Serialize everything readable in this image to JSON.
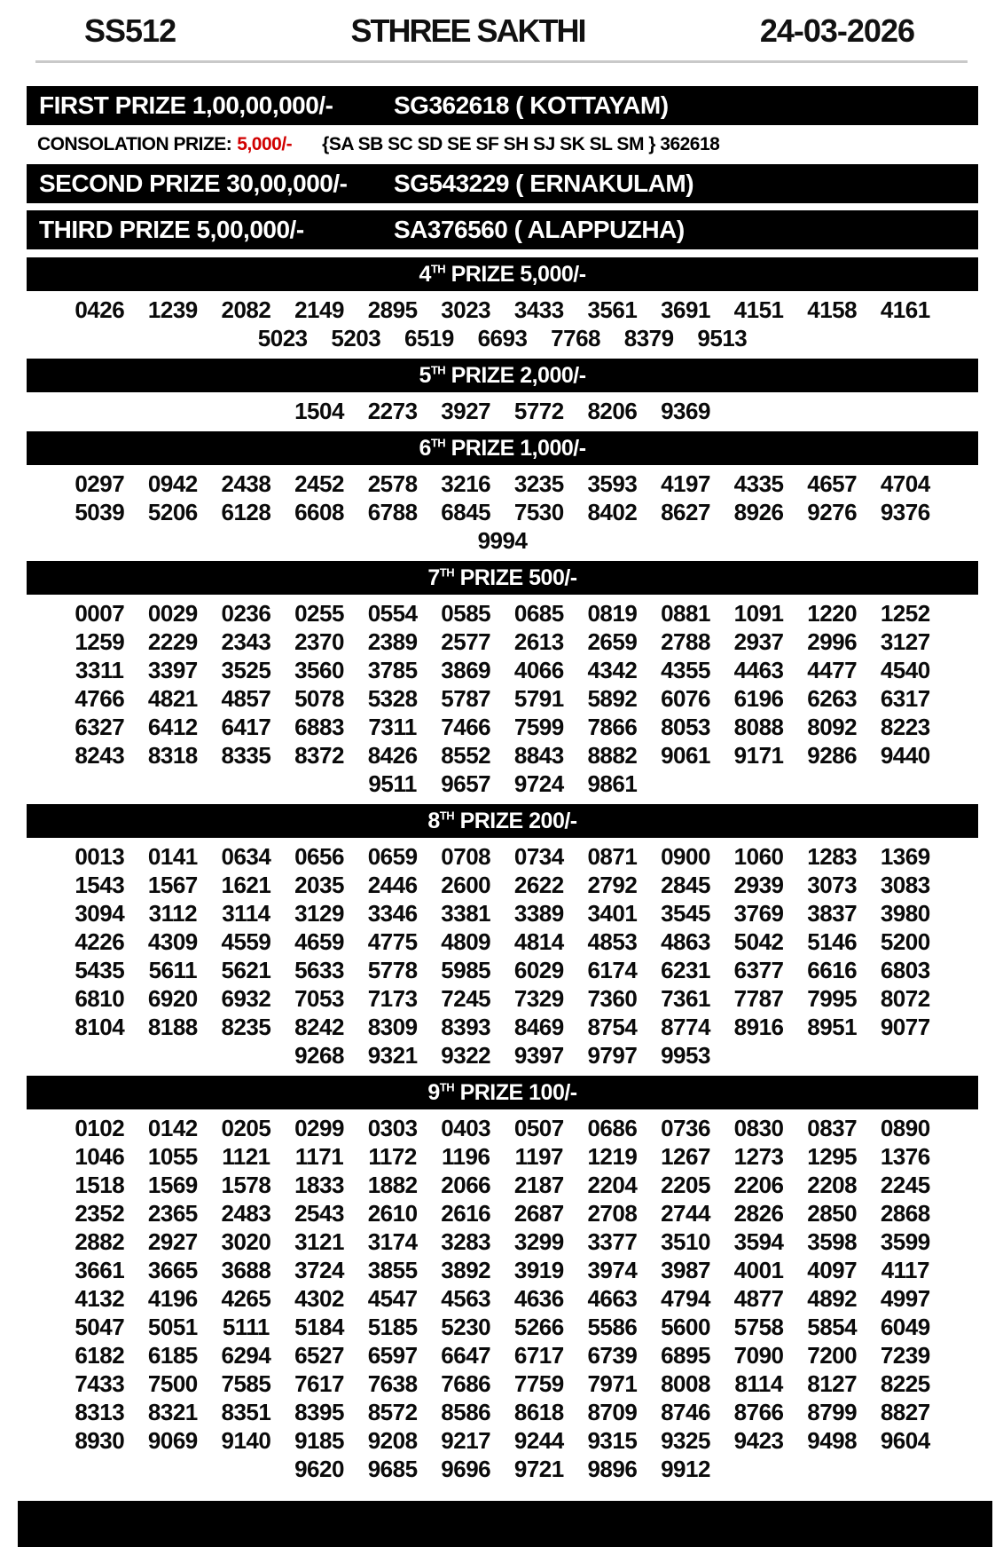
{
  "header": {
    "draw_code": "SS512",
    "lottery_name": "STHREE SAKTHI",
    "date": "24-03-2026"
  },
  "colors": {
    "bar_background": "#000000",
    "bar_text": "#ffffff",
    "consolation_amount_red": "#d10000"
  },
  "prizes": {
    "first": {
      "label": "FIRST PRIZE 1,00,00,000/-",
      "winner": "SG362618 ( KOTTAYAM)"
    },
    "second": {
      "label": "SECOND PRIZE 30,00,000/-",
      "winner": "SG543229 ( ERNAKULAM)"
    },
    "third": {
      "label": "THIRD PRIZE 5,00,000/-",
      "winner": "SA376560 ( ALAPPUZHA)"
    }
  },
  "consolation": {
    "label": "CONSOLATION PRIZE:",
    "amount": "5,000/-",
    "series": "{SA SB SC SD SE SF SH SJ SK SL SM } 362618"
  },
  "sections": [
    {
      "ordinal": "4",
      "sup": "TH",
      "title_rest": " PRIZE 5,000/-",
      "numbers": [
        "0426",
        "1239",
        "2082",
        "2149",
        "2895",
        "3023",
        "3433",
        "3561",
        "3691",
        "4151",
        "4158",
        "4161",
        "5023",
        "5203",
        "6519",
        "6693",
        "7768",
        "8379",
        "9513"
      ]
    },
    {
      "ordinal": "5",
      "sup": "TH",
      "title_rest": " PRIZE 2,000/-",
      "numbers": [
        "1504",
        "2273",
        "3927",
        "5772",
        "8206",
        "9369"
      ]
    },
    {
      "ordinal": "6",
      "sup": "TH",
      "title_rest": " PRIZE 1,000/-",
      "numbers": [
        "0297",
        "0942",
        "2438",
        "2452",
        "2578",
        "3216",
        "3235",
        "3593",
        "4197",
        "4335",
        "4657",
        "4704",
        "5039",
        "5206",
        "6128",
        "6608",
        "6788",
        "6845",
        "7530",
        "8402",
        "8627",
        "8926",
        "9276",
        "9376",
        "9994"
      ]
    },
    {
      "ordinal": "7",
      "sup": "TH",
      "title_rest": " PRIZE 500/-",
      "numbers": [
        "0007",
        "0029",
        "0236",
        "0255",
        "0554",
        "0585",
        "0685",
        "0819",
        "0881",
        "1091",
        "1220",
        "1252",
        "1259",
        "2229",
        "2343",
        "2370",
        "2389",
        "2577",
        "2613",
        "2659",
        "2788",
        "2937",
        "2996",
        "3127",
        "3311",
        "3397",
        "3525",
        "3560",
        "3785",
        "3869",
        "4066",
        "4342",
        "4355",
        "4463",
        "4477",
        "4540",
        "4766",
        "4821",
        "4857",
        "5078",
        "5328",
        "5787",
        "5791",
        "5892",
        "6076",
        "6196",
        "6263",
        "6317",
        "6327",
        "6412",
        "6417",
        "6883",
        "7311",
        "7466",
        "7599",
        "7866",
        "8053",
        "8088",
        "8092",
        "8223",
        "8243",
        "8318",
        "8335",
        "8372",
        "8426",
        "8552",
        "8843",
        "8882",
        "9061",
        "9171",
        "9286",
        "9440",
        "9511",
        "9657",
        "9724",
        "9861"
      ]
    },
    {
      "ordinal": "8",
      "sup": "TH",
      "title_rest": " PRIZE 200/-",
      "numbers": [
        "0013",
        "0141",
        "0634",
        "0656",
        "0659",
        "0708",
        "0734",
        "0871",
        "0900",
        "1060",
        "1283",
        "1369",
        "1543",
        "1567",
        "1621",
        "2035",
        "2446",
        "2600",
        "2622",
        "2792",
        "2845",
        "2939",
        "3073",
        "3083",
        "3094",
        "3112",
        "3114",
        "3129",
        "3346",
        "3381",
        "3389",
        "3401",
        "3545",
        "3769",
        "3837",
        "3980",
        "4226",
        "4309",
        "4559",
        "4659",
        "4775",
        "4809",
        "4814",
        "4853",
        "4863",
        "5042",
        "5146",
        "5200",
        "5435",
        "5611",
        "5621",
        "5633",
        "5778",
        "5985",
        "6029",
        "6174",
        "6231",
        "6377",
        "6616",
        "6803",
        "6810",
        "6920",
        "6932",
        "7053",
        "7173",
        "7245",
        "7329",
        "7360",
        "7361",
        "7787",
        "7995",
        "8072",
        "8104",
        "8188",
        "8235",
        "8242",
        "8309",
        "8393",
        "8469",
        "8754",
        "8774",
        "8916",
        "8951",
        "9077",
        "9268",
        "9321",
        "9322",
        "9397",
        "9797",
        "9953"
      ]
    },
    {
      "ordinal": "9",
      "sup": "TH",
      "title_rest": " PRIZE 100/-",
      "numbers": [
        "0102",
        "0142",
        "0205",
        "0299",
        "0303",
        "0403",
        "0507",
        "0686",
        "0736",
        "0830",
        "0837",
        "0890",
        "1046",
        "1055",
        "1121",
        "1171",
        "1172",
        "1196",
        "1197",
        "1219",
        "1267",
        "1273",
        "1295",
        "1376",
        "1518",
        "1569",
        "1578",
        "1833",
        "1882",
        "2066",
        "2187",
        "2204",
        "2205",
        "2206",
        "2208",
        "2245",
        "2352",
        "2365",
        "2483",
        "2543",
        "2610",
        "2616",
        "2687",
        "2708",
        "2744",
        "2826",
        "2850",
        "2868",
        "2882",
        "2927",
        "3020",
        "3121",
        "3174",
        "3283",
        "3299",
        "3377",
        "3510",
        "3594",
        "3598",
        "3599",
        "3661",
        "3665",
        "3688",
        "3724",
        "3855",
        "3892",
        "3919",
        "3974",
        "3987",
        "4001",
        "4097",
        "4117",
        "4132",
        "4196",
        "4265",
        "4302",
        "4547",
        "4563",
        "4636",
        "4663",
        "4794",
        "4877",
        "4892",
        "4997",
        "5047",
        "5051",
        "5111",
        "5184",
        "5185",
        "5230",
        "5266",
        "5586",
        "5600",
        "5758",
        "5854",
        "6049",
        "6182",
        "6185",
        "6294",
        "6527",
        "6597",
        "6647",
        "6717",
        "6739",
        "6895",
        "7090",
        "7200",
        "7239",
        "7433",
        "7500",
        "7585",
        "7617",
        "7638",
        "7686",
        "7759",
        "7971",
        "8008",
        "8114",
        "8127",
        "8225",
        "8313",
        "8321",
        "8351",
        "8395",
        "8572",
        "8586",
        "8618",
        "8709",
        "8746",
        "8766",
        "8799",
        "8827",
        "8930",
        "9069",
        "9140",
        "9185",
        "9208",
        "9217",
        "9244",
        "9315",
        "9325",
        "9423",
        "9498",
        "9604",
        "9620",
        "9685",
        "9696",
        "9721",
        "9896",
        "9912"
      ]
    }
  ]
}
